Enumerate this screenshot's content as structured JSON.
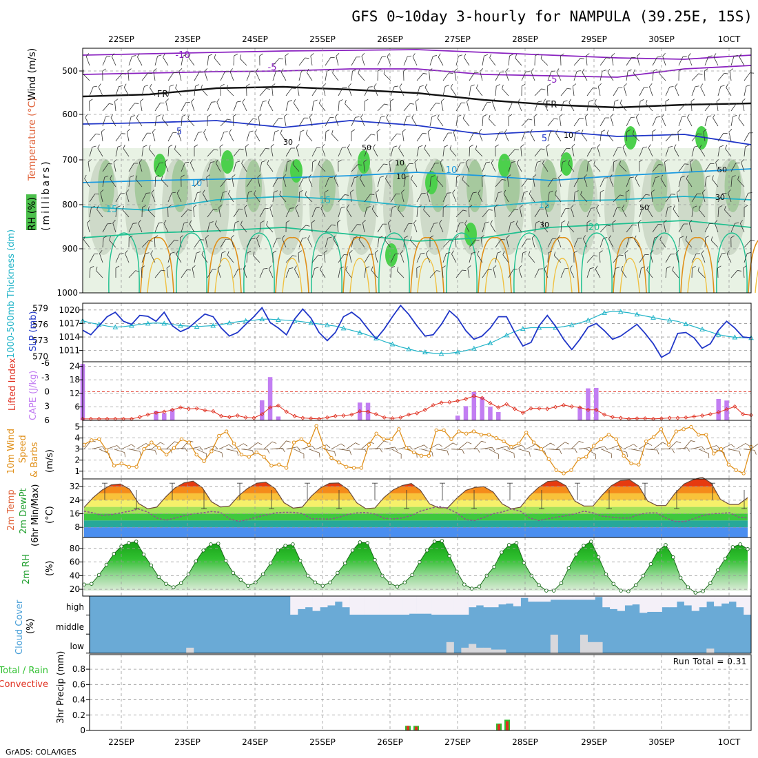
{
  "title": "GFS 0~10day 3-hourly for NAMPULA (39.25E, 15S)",
  "credit": "GrADS: COLA/IGES",
  "days": [
    "22SEP",
    "23SEP",
    "24SEP",
    "25SEP",
    "26SEP",
    "27SEP",
    "28SEP",
    "29SEP",
    "30SEP",
    "1OCT"
  ],
  "colors": {
    "blue": "#2036c8",
    "cyan": "#22b4c8",
    "purple": "#8a22c0",
    "orange": "#e0901a",
    "cape": "#c27ef2",
    "lifted": "#e03020",
    "cloud": "#6aaad6",
    "cloudClear": "#f4f0f8",
    "precipGreen": "#30c030",
    "precipRed": "#e03020"
  },
  "panels": {
    "upper": {
      "legend": [
        "RH (%)",
        "Temperature (°C)",
        "Wind (m/s)"
      ],
      "axis_label": "(millibars)",
      "levels": [
        "500",
        "600",
        "700",
        "800",
        "900",
        "1000"
      ],
      "temp_labels": [
        "-10",
        "-5",
        "-5",
        "FR",
        "FR",
        "5",
        "5",
        "10",
        "10",
        "15",
        "15",
        "15",
        "20"
      ],
      "rh_labels": [
        "30",
        "50",
        "10",
        "10",
        "30",
        "50",
        "30",
        "50",
        "10"
      ]
    },
    "pressure": {
      "label_slp": "SLP (mb)",
      "label_thick": "1000-500mb Thickness (dm)",
      "thick_ticks": [
        "579",
        "576",
        "573",
        "570"
      ],
      "slp_ticks": [
        "1020",
        "1017",
        "1014",
        "1011"
      ]
    },
    "cape": {
      "label_li": "Lifted Index",
      "label_cape": "CAPE (J/kg)",
      "li_ticks": [
        "-6",
        "-3",
        "0",
        "3",
        "6"
      ],
      "cape_ticks": [
        "24",
        "18",
        "12",
        "6"
      ]
    },
    "wind": {
      "label": [
        "10m Wind",
        "Speed",
        "& Barbs"
      ],
      "unit": "(m/s)",
      "ticks": [
        "5",
        "4",
        "3",
        "2",
        "1"
      ]
    },
    "temp": {
      "label": [
        "2m Temp",
        "2m DewPt",
        "(6hr Min/Max)"
      ],
      "unit": "(°C)",
      "ticks": [
        "32",
        "24",
        "16",
        "8"
      ]
    },
    "rh": {
      "label": "2m RH",
      "unit": "(%)",
      "ticks": [
        "80",
        "60",
        "40",
        "20"
      ]
    },
    "cloud": {
      "label": "Cloud Cover",
      "unit": "(%)",
      "layers": [
        "high",
        "middle",
        "low"
      ]
    },
    "precip": {
      "label_a": "Total / Rain",
      "label_b": "Convective",
      "axis_label": "3hr Precip (mm)",
      "ticks": [
        "0.8",
        "0.6",
        "0.4",
        "0.2",
        "0"
      ],
      "run_total": "Run Total = 0.31"
    }
  },
  "chart_data": [
    {
      "type": "line",
      "title": "SLP (mb)",
      "series": [
        {
          "name": "SLP",
          "values": [
            1015.5,
            1014.5,
            1016.5,
            1018.5,
            1019.5,
            1017.5,
            1016.8,
            1018.8,
            1018.6,
            1017.5,
            1019.5,
            1016.5,
            1015.2,
            1016,
            1017.6,
            1019.1,
            1018.5,
            1016,
            1014.2,
            1015,
            1016.8,
            1018.5,
            1020.5,
            1017.2,
            1016,
            1014.5,
            1018,
            1020.2,
            1018.2,
            1015,
            1013.2,
            1015,
            1018.5,
            1019.5,
            1018.1,
            1015.8,
            1013.6,
            1015.8,
            1018.5,
            1021,
            1019,
            1016.5,
            1014.2,
            1014.5,
            1016.8,
            1019.8,
            1018.2,
            1015.4,
            1013.5,
            1014.2,
            1016,
            1018.5,
            1018.5,
            1015,
            1012,
            1012.8,
            1016.5,
            1018.8,
            1016.4,
            1013.5,
            1011.2,
            1013.5,
            1016.2,
            1017,
            1015.4,
            1013.5,
            1014.2,
            1015.5,
            1016.8,
            1014.8,
            1012.5,
            1009.5,
            1010.5,
            1014.8,
            1015,
            1013.8,
            1011.5,
            1012.5,
            1015.5,
            1017.5,
            1016,
            1014,
            1013.8
          ]
        },
        {
          "name": "Thickness",
          "values": [
            576.7,
            576.3,
            576,
            575.7,
            575.5,
            575.6,
            575.8,
            576,
            576.2,
            576.3,
            576.2,
            576,
            575.8,
            575.7,
            575.6,
            575.7,
            575.8,
            576,
            576.3,
            576.5,
            576.7,
            576.8,
            577,
            577,
            576.9,
            576.8,
            576.7,
            576.5,
            576.3,
            576.1,
            575.9,
            575.7,
            575.3,
            574.9,
            574.5,
            574,
            573.4,
            572.8,
            572.3,
            571.8,
            571.4,
            571,
            570.8,
            570.6,
            570.5,
            570.6,
            570.8,
            571.1,
            571.5,
            572,
            572.5,
            573.2,
            574,
            574.7,
            575.2,
            575.4,
            575.4,
            575.4,
            575.4,
            575.6,
            575.9,
            576.3,
            576.8,
            577.5,
            578.2,
            578.5,
            578.4,
            578.2,
            577.9,
            577.6,
            577.3,
            577,
            576.8,
            576.6,
            576.1,
            575.6,
            575.1,
            574.6,
            574.1,
            573.8,
            573.6,
            573.5,
            573.5
          ]
        }
      ],
      "ylim_slp": [
        1008.5,
        1021.5
      ],
      "ylim_thick": [
        569,
        580
      ]
    },
    {
      "type": "bar",
      "title": "CAPE (J/kg)",
      "series": [
        {
          "name": "CAPE",
          "values": [
            25,
            0,
            0,
            0,
            0,
            0,
            0,
            0,
            0,
            4.2,
            3.2,
            4.9,
            0,
            0,
            0,
            0,
            0,
            0,
            0,
            0,
            0,
            0,
            8.9,
            19.2,
            1.7,
            0,
            0,
            0,
            0,
            0,
            0,
            0,
            0,
            0,
            7.9,
            7.8,
            0,
            0,
            0,
            0,
            0,
            0,
            0,
            0,
            0,
            0,
            2.1,
            6.3,
            12.6,
            10.3,
            6.1,
            3.7,
            0,
            0,
            0,
            0,
            0,
            0,
            0,
            0,
            0,
            5.7,
            14.2,
            14.4,
            0,
            0,
            0,
            0,
            0,
            0,
            0,
            0,
            0,
            0,
            0,
            0,
            0,
            0,
            9.5,
            8.8,
            0,
            0,
            0
          ]
        },
        {
          "name": "Lifted Index",
          "values": [
            5.7,
            5.7,
            5.7,
            5.7,
            5.7,
            5.7,
            5.7,
            5.3,
            4.8,
            4.4,
            4.2,
            3.8,
            3.3,
            3.6,
            3.5,
            3.9,
            4.1,
            5.1,
            5.3,
            5,
            5.4,
            5.5,
            4.7,
            3.3,
            2.9,
            4.2,
            5.1,
            5.5,
            5.6,
            5.7,
            5.4,
            5.1,
            5,
            4.8,
            4.1,
            4.2,
            4.7,
            5.4,
            5.6,
            5.4,
            4.8,
            4.5,
            3.8,
            2.8,
            2.3,
            2.2,
            1.9,
            1.5,
            0.9,
            1.3,
            2.4,
            3.3,
            2.6,
            3.6,
            4.4,
            3.5,
            3.5,
            3.6,
            3.2,
            2.8,
            3.1,
            3.3,
            3.8,
            3.8,
            4.8,
            5.3,
            5.5,
            5.7,
            5.6,
            5.6,
            5.7,
            5.6,
            5.5,
            5.5,
            5.4,
            5.2,
            5,
            4.7,
            4.3,
            3.7,
            3.1,
            4.7,
            4.9
          ]
        }
      ],
      "ylim_cape": [
        0,
        26
      ],
      "ylim_li": [
        6,
        -6.3
      ]
    },
    {
      "type": "line",
      "title": "10m Wind Speed (m/s)",
      "series": [
        {
          "name": "Wind Speed",
          "values": [
            3.4,
            3.8,
            3.9,
            2.9,
            1.5,
            1.7,
            1.4,
            1.4,
            3,
            3.6,
            3.1,
            2.5,
            3.1,
            3.9,
            3.6,
            2.5,
            1.9,
            2.8,
            4.2,
            4.6,
            3.5,
            2.5,
            2.3,
            2.7,
            2.3,
            1.5,
            1.6,
            1.3,
            3.6,
            3.9,
            3.4,
            5.1,
            3.2,
            2.2,
            1.8,
            1.4,
            1.3,
            1.3,
            3.4,
            4.4,
            3.9,
            3.9,
            4.8,
            3.1,
            2.7,
            2.4,
            2.4,
            4.7,
            4.7,
            3.9,
            4.6,
            4.4,
            4.6,
            4.3,
            4.3,
            4,
            3.7,
            3.2,
            3.5,
            4.5,
            3.6,
            3,
            2.1,
            1.1,
            0.8,
            1.1,
            2.1,
            2.3,
            3.3,
            3.9,
            4.3,
            3.9,
            2.4,
            1.7,
            1.6,
            3.7,
            4.1,
            4.8,
            3.4,
            4.6,
            4.8,
            5,
            4.3,
            4.3,
            2.6,
            3,
            1.6,
            1.1,
            0.8,
            3.2
          ]
        }
      ],
      "ylim": [
        0.3,
        5.6
      ]
    },
    {
      "type": "area",
      "title": "2m Temp / 2m DewPt (°C)",
      "series": [
        {
          "name": "2m Temp",
          "values": [
            19.7,
            25.5,
            30,
            33,
            33.5,
            30.5,
            22,
            18.9,
            19.9,
            26,
            31.2,
            34.2,
            35.2,
            31.4,
            23.1,
            20,
            20.5,
            26.5,
            31,
            34,
            34.6,
            30.9,
            22.5,
            19.3,
            19.9,
            26.3,
            31.2,
            33.9,
            34.1,
            30.4,
            22.4,
            19,
            19.4,
            25.6,
            30,
            32.6,
            33.8,
            29.8,
            21.8,
            19.5,
            19.5,
            25.1,
            29.8,
            31.5,
            31.9,
            28.8,
            21.8,
            18.9,
            19.8,
            26.5,
            31.5,
            35,
            35.5,
            32.5,
            23.4,
            20.5,
            20.6,
            27,
            32.5,
            35.5,
            36,
            32.5,
            23.5,
            20.8,
            20.8,
            28,
            33.5,
            36,
            37.5,
            34,
            24.5,
            21.5,
            21.5,
            25.5
          ]
        },
        {
          "name": "2m DewPt",
          "values": [
            17.5,
            16.5,
            15,
            15.5,
            16.5,
            17.5,
            18.8,
            17,
            13.5,
            12.2,
            13.5,
            14.8,
            16,
            16.5,
            17.3,
            16.8,
            13,
            11.5,
            12.5,
            14,
            15.2,
            16.5,
            16.8,
            16.8,
            16.2,
            13,
            13,
            12.8,
            13.8,
            15.5,
            16.5,
            16.7,
            15.8,
            13.3,
            13,
            13.5,
            15,
            17.5,
            19,
            20.4,
            19,
            16.5,
            12.5,
            12,
            13.8,
            16,
            17,
            18.8,
            17.5,
            13.5,
            12,
            13,
            14,
            14.8,
            16,
            17.5,
            16.5,
            14.6,
            14,
            13.5,
            13.5,
            15.5,
            16.5,
            16.5,
            13.5,
            11.5,
            11.3,
            13,
            14.8,
            16,
            16.2,
            16.6,
            14,
            13.5
          ]
        }
      ],
      "ylim": [
        2,
        36.5
      ]
    },
    {
      "type": "area",
      "title": "2m RH (%)",
      "series": [
        {
          "name": "2m RH",
          "values": [
            27,
            28,
            41,
            56,
            72,
            83,
            88,
            90,
            71,
            55,
            38,
            28,
            23,
            29,
            42,
            61,
            77,
            86,
            87,
            62,
            44,
            34,
            25,
            30,
            42,
            58,
            77,
            84,
            86,
            62,
            40,
            30,
            25,
            30,
            44,
            58,
            77,
            89,
            88,
            63,
            40,
            29,
            24,
            30,
            41,
            60,
            77,
            90,
            91,
            69,
            46,
            27,
            21,
            24,
            40,
            53,
            74,
            85,
            88,
            59,
            40,
            26,
            18,
            18,
            29,
            51,
            71,
            84,
            90,
            67,
            42,
            28,
            18,
            17,
            26,
            40,
            57,
            77,
            85,
            67,
            37,
            23,
            15,
            17,
            29,
            48,
            65,
            82,
            86,
            79
          ]
        }
      ],
      "ylim": [
        10,
        96
      ]
    },
    {
      "type": "bar",
      "title": "Cloud Cover (%)",
      "series": [
        {
          "name": "high",
          "values": [
            0,
            0,
            0,
            0,
            0,
            0,
            0,
            0,
            0,
            0,
            0,
            0,
            0,
            0,
            0,
            0,
            0,
            0,
            0,
            0,
            0,
            0,
            0,
            0,
            0,
            0,
            0,
            100,
            70,
            60,
            80,
            60,
            50,
            30,
            60,
            100,
            100,
            100,
            100,
            100,
            100,
            100,
            100,
            95,
            95,
            95,
            100,
            100,
            100,
            100,
            100,
            60,
            50,
            60,
            60,
            45,
            40,
            55,
            10,
            30,
            30,
            30,
            20,
            20,
            20,
            20,
            20,
            20,
            5,
            60,
            70,
            80,
            50,
            45,
            90,
            85,
            85,
            60,
            60,
            30,
            50,
            80,
            60,
            30,
            55,
            40,
            30,
            60,
            100
          ]
        },
        {
          "name": "low",
          "values": [
            0,
            0,
            0,
            0,
            0,
            0,
            0,
            0,
            0,
            0,
            0,
            0,
            0,
            30,
            0,
            0,
            0,
            0,
            0,
            0,
            0,
            0,
            0,
            0,
            0,
            0,
            0,
            0,
            0,
            0,
            0,
            0,
            0,
            0,
            0,
            0,
            0,
            0,
            0,
            0,
            0,
            0,
            0,
            0,
            0,
            0,
            0,
            0,
            60,
            0,
            30,
            50,
            30,
            30,
            20,
            20,
            0,
            0,
            0,
            0,
            0,
            0,
            100,
            0,
            0,
            0,
            100,
            60,
            60,
            0,
            0,
            0,
            0,
            0,
            0,
            0,
            0,
            0,
            0,
            0,
            0,
            0,
            0,
            25,
            0,
            0,
            0,
            0,
            0,
            0,
            35,
            0,
            0,
            0,
            0,
            0
          ]
        }
      ],
      "ylim": [
        0,
        100
      ]
    },
    {
      "type": "bar",
      "title": "3hr Precip (mm)",
      "series": [
        {
          "name": "Total",
          "index": [
            34,
            35,
            45,
            46
          ],
          "values": [
            0.06,
            0.06,
            0.09,
            0.14
          ]
        },
        {
          "name": "Convective",
          "index": [
            34,
            35,
            45,
            46
          ],
          "values": [
            0.06,
            0.05,
            0.08,
            0.12
          ]
        }
      ],
      "ylim": [
        0,
        0.99
      ]
    }
  ]
}
